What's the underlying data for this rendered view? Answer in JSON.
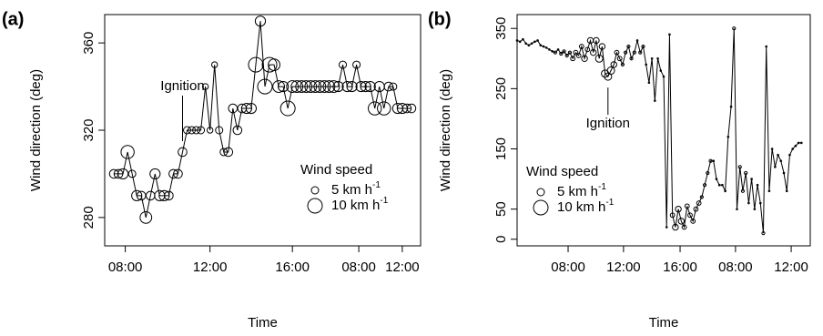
{
  "chart_data": [
    {
      "type": "bubble_line",
      "panel_label": "(a)",
      "xlabel": "Time",
      "ylabel": "Wind direction (deg)",
      "x": [
        1,
        2,
        3,
        4,
        5,
        6,
        7,
        8,
        9,
        10,
        11,
        12,
        13,
        14,
        15,
        16,
        17,
        18,
        19,
        20,
        21,
        22,
        23,
        24,
        25,
        26,
        27,
        28,
        29,
        30,
        31,
        32,
        33,
        34,
        35,
        36,
        37,
        38,
        39,
        40,
        41,
        42,
        43,
        44,
        45,
        46,
        47,
        48,
        49,
        50,
        51,
        52,
        53,
        54,
        55,
        56,
        57,
        58,
        59,
        60,
        61,
        62,
        63,
        64,
        65,
        66
      ],
      "values": [
        300,
        300,
        300,
        310,
        300,
        290,
        290,
        280,
        290,
        300,
        290,
        290,
        290,
        300,
        300,
        310,
        320,
        320,
        320,
        320,
        340,
        320,
        350,
        320,
        310,
        310,
        330,
        320,
        330,
        330,
        330,
        350,
        370,
        340,
        350,
        350,
        340,
        340,
        330,
        340,
        340,
        340,
        340,
        340,
        340,
        340,
        340,
        340,
        340,
        340,
        350,
        340,
        340,
        350,
        340,
        340,
        340,
        330,
        340,
        330,
        340,
        340,
        330,
        330,
        330,
        330
      ],
      "sizes": [
        6,
        6,
        7,
        9,
        5,
        7,
        6,
        8,
        6,
        7,
        7,
        7,
        6,
        6,
        6,
        6,
        5,
        5,
        5,
        5,
        4,
        4,
        4,
        5,
        5,
        6,
        6,
        6,
        6,
        7,
        7,
        10,
        7,
        10,
        10,
        8,
        8,
        7,
        10,
        8,
        8,
        8,
        8,
        8,
        8,
        8,
        8,
        8,
        8,
        7,
        5,
        7,
        7,
        5,
        7,
        7,
        7,
        9,
        7,
        9,
        6,
        5,
        7,
        7,
        6,
        6
      ],
      "xlim": [
        -1,
        68
      ],
      "ylim": [
        267,
        373
      ],
      "xticks": [
        {
          "value": 3.5,
          "label": "08:00"
        },
        {
          "value": 22,
          "label": "12:00"
        },
        {
          "value": 40,
          "label": "16:00"
        },
        {
          "value": 54.5,
          "label": "08:00"
        },
        {
          "value": 64,
          "label": "12:00"
        }
      ],
      "yticks": [
        280,
        320,
        360
      ],
      "legend_title": "Wind speed",
      "legend": [
        {
          "label": "5 km h",
          "sup": "-1",
          "size": 5
        },
        {
          "label": "10 km h",
          "sup": "-1",
          "size": 10
        }
      ],
      "annotation": {
        "text": "Ignition",
        "x": 16,
        "y": 310
      },
      "color": "#000000"
    },
    {
      "type": "bubble_line",
      "panel_label": "(b)",
      "xlabel": "Time",
      "ylabel": "Wind direction (deg)",
      "x": [
        0,
        1,
        2,
        3,
        4,
        5,
        6,
        7,
        8,
        9,
        10,
        11,
        12,
        13,
        14,
        15,
        16,
        17,
        18,
        19,
        20,
        21,
        22,
        23,
        24,
        25,
        26,
        27,
        28,
        29,
        30,
        31,
        32,
        33,
        34,
        35,
        36,
        37,
        38,
        39,
        40,
        41,
        42,
        43,
        44,
        45,
        46,
        47,
        48,
        49,
        50,
        51,
        52,
        53,
        54,
        55,
        56,
        57,
        58,
        59,
        60,
        61,
        62,
        63,
        64,
        65,
        66,
        67,
        68,
        69,
        70,
        71,
        72,
        73,
        74,
        75,
        76,
        77,
        78,
        79,
        80,
        81,
        82,
        83,
        84,
        85,
        86,
        87,
        88,
        89,
        90,
        91,
        92,
        93,
        94,
        95,
        96,
        97
      ],
      "values": [
        330,
        328,
        332,
        325,
        322,
        325,
        328,
        330,
        322,
        320,
        318,
        315,
        312,
        310,
        315,
        308,
        312,
        305,
        310,
        300,
        310,
        305,
        320,
        300,
        315,
        330,
        310,
        330,
        300,
        320,
        275,
        270,
        280,
        290,
        310,
        300,
        290,
        310,
        320,
        300,
        310,
        330,
        310,
        320,
        290,
        260,
        300,
        230,
        300,
        280,
        270,
        20,
        340,
        40,
        20,
        50,
        30,
        20,
        55,
        40,
        30,
        50,
        60,
        70,
        90,
        110,
        130,
        130,
        100,
        90,
        90,
        80,
        170,
        220,
        350,
        50,
        120,
        80,
        110,
        60,
        100,
        50,
        90,
        60,
        10,
        320,
        80,
        150,
        120,
        140,
        130,
        110,
        80,
        140,
        150,
        155,
        160,
        160
      ],
      "sizes": [
        1,
        1,
        1,
        1,
        1,
        1,
        1,
        1,
        1,
        1,
        1,
        1,
        1,
        2,
        1,
        2,
        2,
        2,
        2,
        3,
        3,
        3,
        3,
        4,
        3,
        4,
        4,
        4,
        5,
        4,
        5,
        5,
        5,
        4,
        3,
        3,
        2,
        2,
        2,
        2,
        2,
        1,
        2,
        2,
        1,
        1,
        1,
        1,
        1,
        1,
        1,
        1,
        1,
        3,
        4,
        4,
        4,
        3,
        3,
        3,
        3,
        3,
        3,
        2,
        2,
        2,
        2,
        1,
        1,
        1,
        1,
        1,
        1,
        1,
        2,
        1,
        2,
        2,
        2,
        1,
        1,
        1,
        1,
        1,
        2,
        1,
        1,
        1,
        1,
        1,
        1,
        1,
        1,
        1,
        1,
        1,
        1,
        1
      ],
      "xlim": [
        0,
        100
      ],
      "ylim": [
        -11,
        373
      ],
      "xticks": [
        {
          "value": 17.4,
          "label": "08:00"
        },
        {
          "value": 36.3,
          "label": "12:00"
        },
        {
          "value": 55.6,
          "label": "16:00"
        },
        {
          "value": 74.5,
          "label": "08:00"
        },
        {
          "value": 93.5,
          "label": "12:00"
        }
      ],
      "yticks": [
        0,
        50,
        150,
        250,
        350
      ],
      "legend_title": "Wind speed",
      "legend": [
        {
          "label": "5 km h",
          "sup": "-1",
          "size": 5
        },
        {
          "label": "10 km h",
          "sup": "-1",
          "size": 10
        }
      ],
      "annotation": {
        "text": "Ignition",
        "x": 31,
        "y": 270
      },
      "color": "#000000"
    }
  ]
}
